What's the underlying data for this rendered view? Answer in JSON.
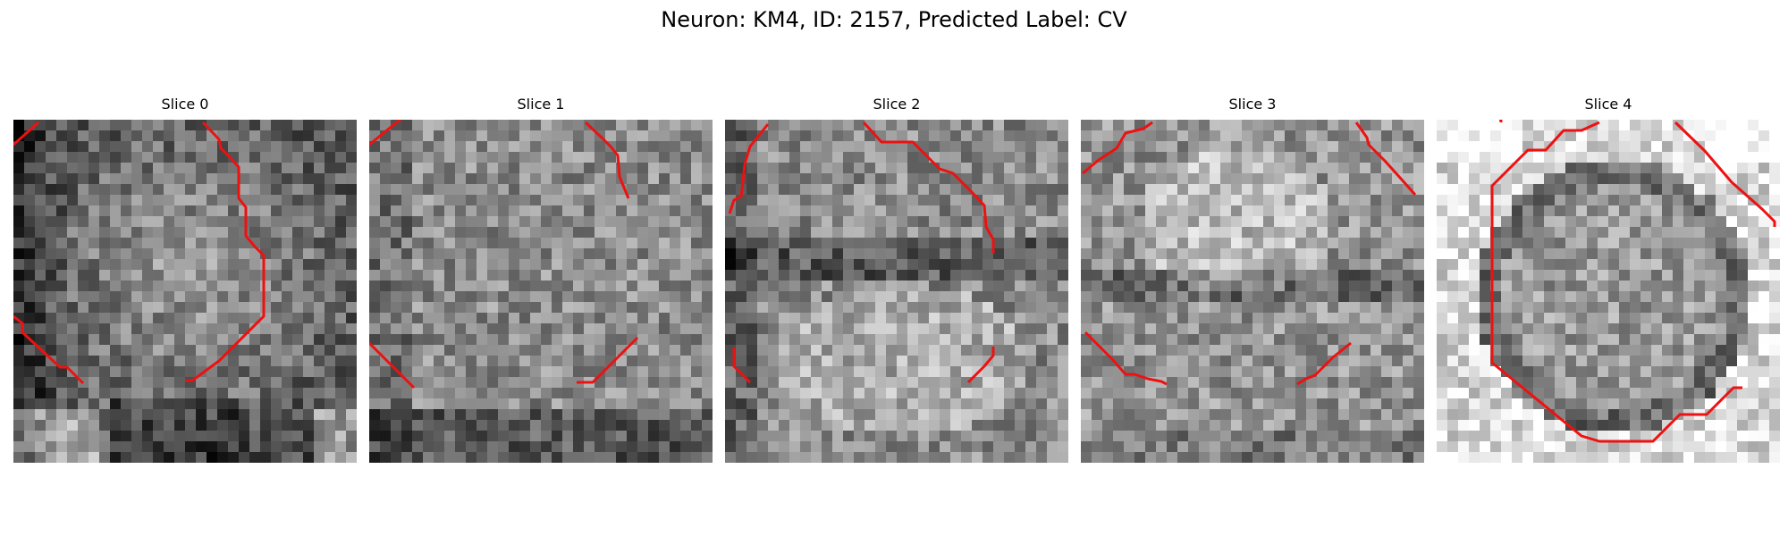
{
  "figure": {
    "title": "Neuron: KM4, ID: 2157, Predicted Label: CV"
  },
  "panels": [
    {
      "title": "Slice 0"
    },
    {
      "title": "Slice 1"
    },
    {
      "title": "Slice 2"
    },
    {
      "title": "Slice 3"
    },
    {
      "title": "Slice 4"
    }
  ],
  "colors": {
    "contour": "#ee1111",
    "background": "#ffffff"
  },
  "colormap": "gray"
}
